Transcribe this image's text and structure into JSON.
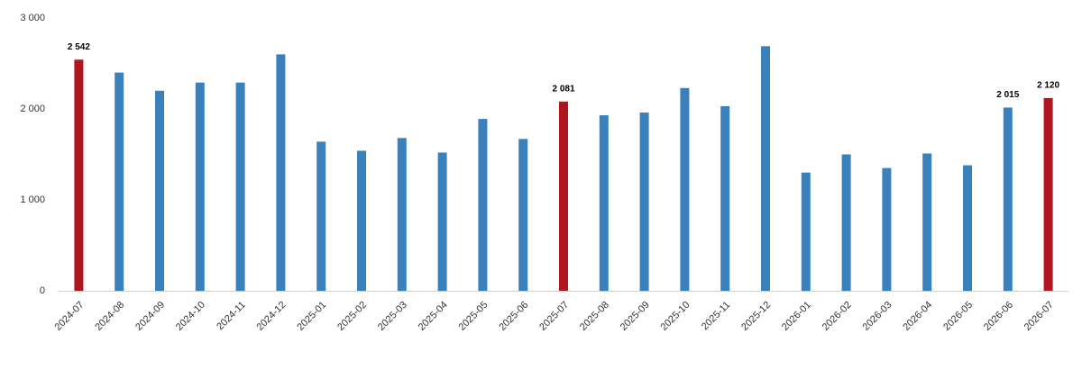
{
  "chart_data": {
    "type": "bar",
    "categories": [
      "2024-07",
      "2024-08",
      "2024-09",
      "2024-10",
      "2024-11",
      "2024-12",
      "2025-01",
      "2025-02",
      "2025-03",
      "2025-04",
      "2025-05",
      "2025-06",
      "2025-07",
      "2025-08",
      "2025-09",
      "2025-10",
      "2025-11",
      "2025-12",
      "2026-01",
      "2026-02",
      "2026-03",
      "2026-04",
      "2026-05",
      "2026-06",
      "2026-07"
    ],
    "values": [
      2542,
      2400,
      2200,
      2290,
      2290,
      2600,
      1640,
      1540,
      1680,
      1520,
      1890,
      1670,
      2081,
      1930,
      1960,
      2230,
      2030,
      2690,
      1300,
      1500,
      1350,
      1510,
      1380,
      2015,
      2120
    ],
    "value_labels": [
      "2 542",
      null,
      null,
      null,
      null,
      null,
      null,
      null,
      null,
      null,
      null,
      null,
      "2 081",
      null,
      null,
      null,
      null,
      null,
      null,
      null,
      null,
      null,
      null,
      "2 015",
      "2 120"
    ],
    "colors": [
      "#b0161e",
      "#3a80bb",
      "#3a80bb",
      "#3a80bb",
      "#3a80bb",
      "#3a80bb",
      "#3a80bb",
      "#3a80bb",
      "#3a80bb",
      "#3a80bb",
      "#3a80bb",
      "#3a80bb",
      "#b0161e",
      "#3a80bb",
      "#3a80bb",
      "#3a80bb",
      "#3a80bb",
      "#3a80bb",
      "#3a80bb",
      "#3a80bb",
      "#3a80bb",
      "#3a80bb",
      "#3a80bb",
      "#3a80bb",
      "#b0161e"
    ],
    "ylim": [
      0,
      3000
    ],
    "yticks": [
      0,
      {
        "value": 1000,
        "label": "1 000"
      },
      {
        "value": 2000,
        "label": "2 000"
      },
      {
        "value": 3000,
        "label": "3 000"
      }
    ],
    "grid": false
  }
}
